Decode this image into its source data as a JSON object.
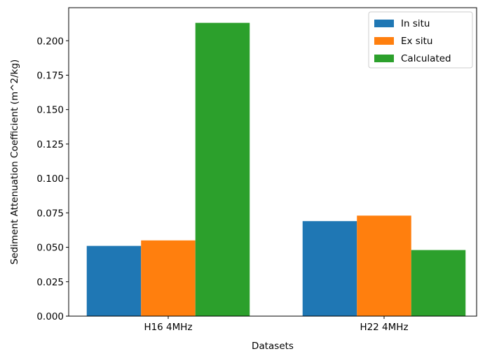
{
  "chart_data": {
    "type": "bar",
    "title": "",
    "xlabel": "Datasets",
    "ylabel": "Sediment Attenuation Coefficient (m^2/kg)",
    "categories": [
      "H16 4MHz",
      "H22 4MHz"
    ],
    "series": [
      {
        "name": "In situ",
        "values": [
          0.051,
          0.069
        ],
        "color": "#1f77b4"
      },
      {
        "name": "Ex situ",
        "values": [
          0.055,
          0.073
        ],
        "color": "#ff7f0e"
      },
      {
        "name": "Calculated",
        "values": [
          0.213,
          0.048
        ],
        "color": "#2ca02c"
      }
    ],
    "ylim": [
      0,
      0.224
    ],
    "yticks": [
      "0.000",
      "0.025",
      "0.050",
      "0.075",
      "0.100",
      "0.125",
      "0.150",
      "0.175",
      "0.200"
    ],
    "grid": false,
    "legend_position": "top-right"
  }
}
